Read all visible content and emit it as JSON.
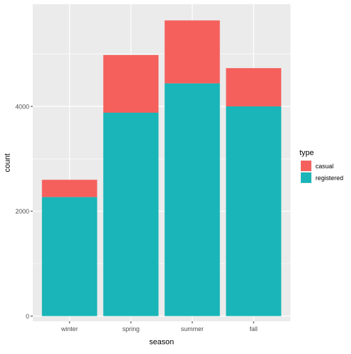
{
  "chart_data": {
    "type": "bar",
    "stacked": true,
    "title": "",
    "xlabel": "season",
    "ylabel": "count",
    "categories": [
      "winter",
      "spring",
      "summer",
      "fall"
    ],
    "series": [
      {
        "name": "registered",
        "color": "#19B5B8",
        "values": [
          2270,
          3880,
          4440,
          4000
        ]
      },
      {
        "name": "casual",
        "color": "#F5605C",
        "values": [
          330,
          1100,
          1200,
          730
        ]
      }
    ],
    "ylim": [
      -100,
      5950
    ],
    "yticks": [
      0,
      2000,
      4000
    ],
    "grid": true,
    "legend": {
      "title": "type",
      "position": "right",
      "entries": [
        "casual",
        "registered"
      ]
    }
  }
}
